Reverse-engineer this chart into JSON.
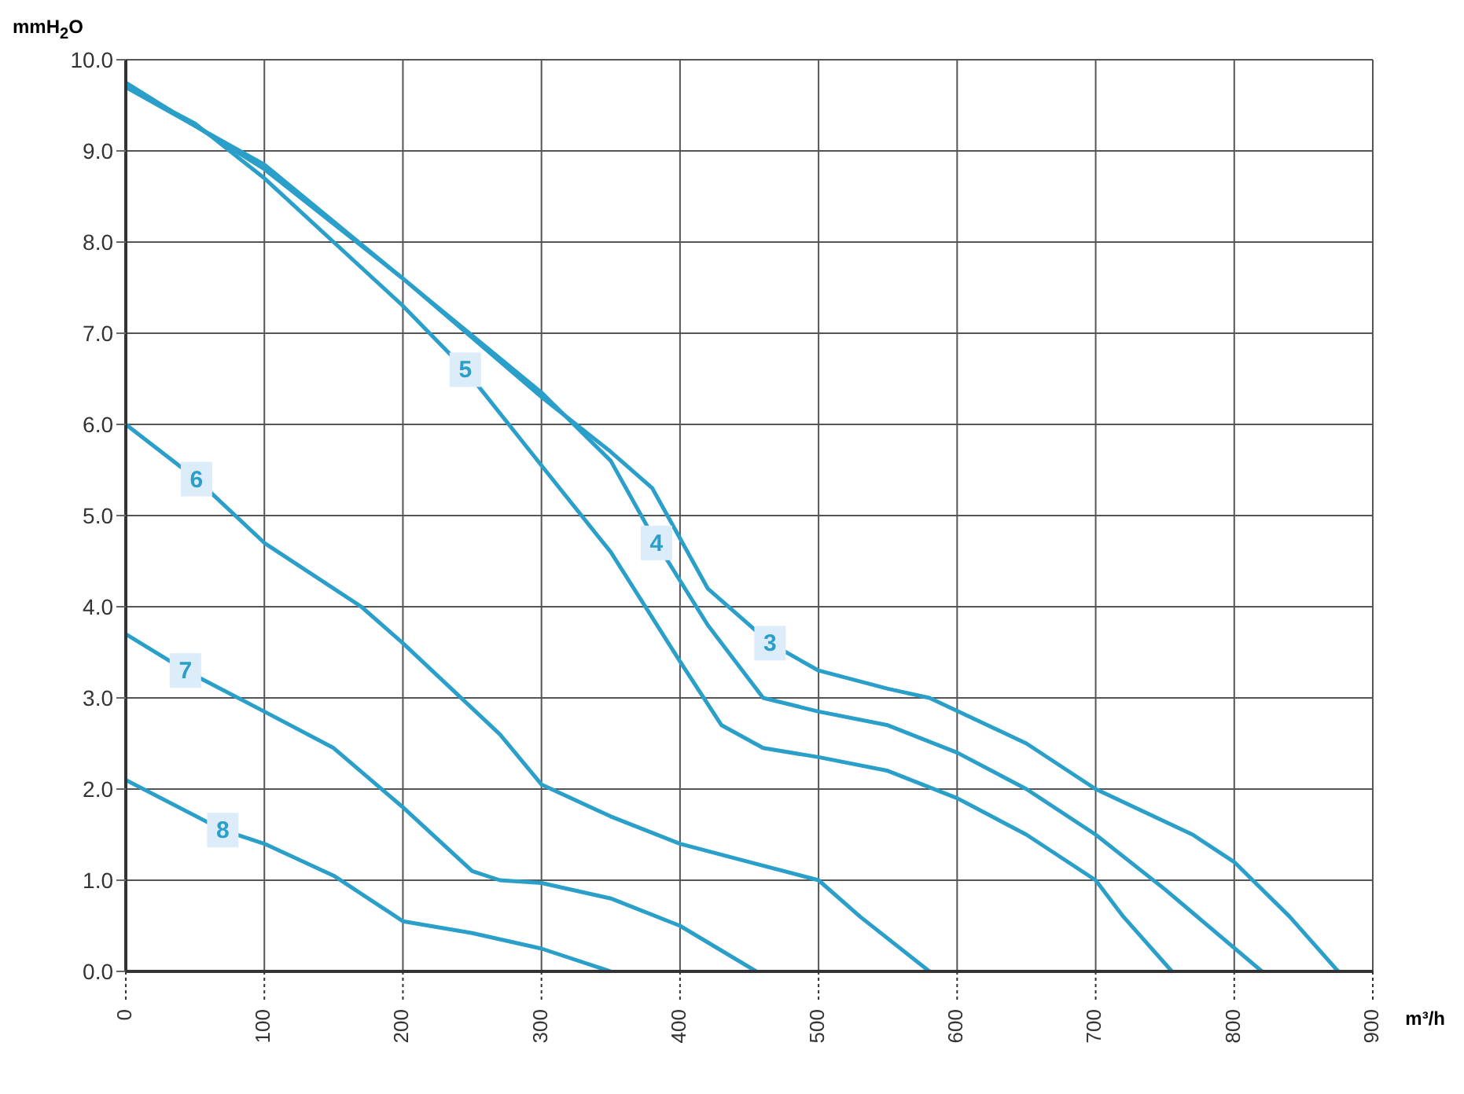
{
  "chart_data": {
    "type": "line",
    "xlabel": "m³/h",
    "ylabel": "mmH$_{2}$O",
    "xlim": [
      0,
      900
    ],
    "ylim": [
      0,
      10
    ],
    "xticks": [
      0,
      100,
      200,
      300,
      400,
      500,
      600,
      700,
      800,
      900
    ],
    "yticks": [
      {
        "value": 0,
        "label": "0.0"
      },
      {
        "value": 1,
        "label": "1.0"
      },
      {
        "value": 2,
        "label": "2.0"
      },
      {
        "value": 3,
        "label": "3.0"
      },
      {
        "value": 4,
        "label": "4.0"
      },
      {
        "value": 5,
        "label": "5.0"
      },
      {
        "value": 6,
        "label": "6.0"
      },
      {
        "value": 7,
        "label": "7.0"
      },
      {
        "value": 8,
        "label": "8.0"
      },
      {
        "value": 9,
        "label": "9.0"
      },
      {
        "value": 10,
        "label": "10.0"
      }
    ],
    "grid": true,
    "marker": "none",
    "line_style": "solid",
    "series": [
      {
        "name": "3",
        "color": "#2a9fc9",
        "x": [
          0,
          100,
          200,
          300,
          350,
          380,
          420,
          450,
          465,
          500,
          550,
          580,
          650,
          700,
          770,
          800,
          840,
          875
        ],
        "values": [
          9.7,
          8.85,
          7.6,
          6.3,
          5.7,
          5.3,
          4.2,
          3.8,
          3.6,
          3.3,
          3.1,
          3.0,
          2.5,
          2.0,
          1.5,
          1.2,
          0.6,
          0
        ]
      },
      {
        "name": "4",
        "color": "#2a9fc9",
        "x": [
          0,
          100,
          200,
          300,
          350,
          383,
          420,
          460,
          500,
          550,
          600,
          650,
          700,
          750,
          820
        ],
        "values": [
          9.75,
          8.8,
          7.6,
          6.35,
          5.6,
          4.7,
          3.8,
          3.0,
          2.85,
          2.7,
          2.4,
          2.0,
          1.5,
          0.9,
          0
        ]
      },
      {
        "name": "5",
        "color": "#2a9fc9",
        "x": [
          0,
          50,
          100,
          150,
          200,
          245,
          300,
          350,
          400,
          430,
          460,
          500,
          550,
          600,
          650,
          700,
          720,
          755
        ],
        "values": [
          9.7,
          9.3,
          8.7,
          8.0,
          7.3,
          6.6,
          5.55,
          4.6,
          3.4,
          2.7,
          2.45,
          2.35,
          2.2,
          1.9,
          1.5,
          1.0,
          0.6,
          0
        ]
      },
      {
        "name": "6",
        "color": "#2a9fc9",
        "x": [
          0,
          51,
          100,
          170,
          200,
          270,
          300,
          350,
          400,
          450,
          500,
          530,
          580
        ],
        "values": [
          6.0,
          5.4,
          4.7,
          4.0,
          3.6,
          2.6,
          2.05,
          1.7,
          1.4,
          1.2,
          1.0,
          0.6,
          0
        ]
      },
      {
        "name": "7",
        "color": "#2a9fc9",
        "x": [
          0,
          43,
          100,
          150,
          200,
          250,
          270,
          300,
          350,
          400,
          455
        ],
        "values": [
          3.7,
          3.3,
          2.85,
          2.45,
          1.8,
          1.1,
          1.0,
          0.97,
          0.8,
          0.5,
          0
        ]
      },
      {
        "name": "8",
        "color": "#2a9fc9",
        "x": [
          0,
          70,
          100,
          150,
          200,
          250,
          300,
          350
        ],
        "values": [
          2.1,
          1.55,
          1.4,
          1.05,
          0.55,
          0.42,
          0.25,
          0
        ]
      }
    ]
  }
}
